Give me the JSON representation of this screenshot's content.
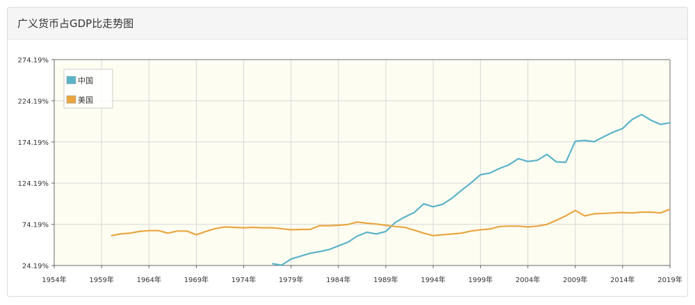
{
  "panel": {
    "title": "广义货币占GDP比走势图"
  },
  "chart_data": {
    "type": "line",
    "title": "广义货币占GDP比走势图",
    "xlabel": "",
    "ylabel": "",
    "x_ticks": [
      "1954年",
      "1959年",
      "1964年",
      "1969年",
      "1974年",
      "1979年",
      "1984年",
      "1989年",
      "1994年",
      "1999年",
      "2004年",
      "2009年",
      "2014年",
      "2019年"
    ],
    "y_ticks": [
      "24.19%",
      "74.19%",
      "124.19%",
      "174.19%",
      "224.19%",
      "274.19%"
    ],
    "xlim": [
      1954,
      2019
    ],
    "ylim": [
      24.19,
      274.19
    ],
    "grid": true,
    "legend_position": "top-left",
    "series": [
      {
        "name": "中国",
        "color": "#5bb3c9",
        "points": [
          [
            1977,
            26.5
          ],
          [
            1978,
            24.6
          ],
          [
            1979,
            32.0
          ],
          [
            1980,
            35.5
          ],
          [
            1981,
            39.0
          ],
          [
            1982,
            41.0
          ],
          [
            1983,
            43.5
          ],
          [
            1984,
            48.0
          ],
          [
            1985,
            52.5
          ],
          [
            1986,
            60.0
          ],
          [
            1987,
            64.5
          ],
          [
            1988,
            62.5
          ],
          [
            1989,
            65.5
          ],
          [
            1990,
            76.5
          ],
          [
            1991,
            83.0
          ],
          [
            1992,
            88.5
          ],
          [
            1993,
            99.0
          ],
          [
            1994,
            95.5
          ],
          [
            1995,
            98.5
          ],
          [
            1996,
            106.0
          ],
          [
            1997,
            115.5
          ],
          [
            1998,
            124.5
          ],
          [
            1999,
            134.5
          ],
          [
            2000,
            136.5
          ],
          [
            2001,
            142.0
          ],
          [
            2002,
            146.5
          ],
          [
            2003,
            154.0
          ],
          [
            2004,
            150.5
          ],
          [
            2005,
            152.0
          ],
          [
            2006,
            159.0
          ],
          [
            2007,
            150.0
          ],
          [
            2008,
            149.5
          ],
          [
            2009,
            175.0
          ],
          [
            2010,
            176.0
          ],
          [
            2011,
            174.5
          ],
          [
            2012,
            180.5
          ],
          [
            2013,
            186.0
          ],
          [
            2014,
            190.5
          ],
          [
            2015,
            201.5
          ],
          [
            2016,
            207.5
          ],
          [
            2017,
            200.5
          ],
          [
            2018,
            195.5
          ],
          [
            2019,
            197.5
          ]
        ]
      },
      {
        "name": "美国",
        "color": "#e9a640",
        "points": [
          [
            1960,
            60.5
          ],
          [
            1961,
            62.5
          ],
          [
            1962,
            63.5
          ],
          [
            1963,
            65.5
          ],
          [
            1964,
            66.5
          ],
          [
            1965,
            66.5
          ],
          [
            1966,
            63.5
          ],
          [
            1967,
            66.0
          ],
          [
            1968,
            66.0
          ],
          [
            1969,
            61.5
          ],
          [
            1970,
            65.5
          ],
          [
            1971,
            69.0
          ],
          [
            1972,
            71.0
          ],
          [
            1973,
            70.5
          ],
          [
            1974,
            70.0
          ],
          [
            1975,
            70.5
          ],
          [
            1976,
            70.0
          ],
          [
            1977,
            70.0
          ],
          [
            1978,
            69.0
          ],
          [
            1979,
            67.5
          ],
          [
            1980,
            68.0
          ],
          [
            1981,
            68.0
          ],
          [
            1982,
            72.5
          ],
          [
            1983,
            72.5
          ],
          [
            1984,
            73.0
          ],
          [
            1985,
            74.0
          ],
          [
            1986,
            77.0
          ],
          [
            1987,
            75.5
          ],
          [
            1988,
            74.5
          ],
          [
            1989,
            73.0
          ],
          [
            1990,
            71.5
          ],
          [
            1991,
            70.5
          ],
          [
            1992,
            67.0
          ],
          [
            1993,
            63.5
          ],
          [
            1994,
            60.5
          ],
          [
            1995,
            61.5
          ],
          [
            1996,
            62.5
          ],
          [
            1997,
            63.5
          ],
          [
            1998,
            66.0
          ],
          [
            1999,
            67.5
          ],
          [
            2000,
            68.5
          ],
          [
            2001,
            71.5
          ],
          [
            2002,
            72.0
          ],
          [
            2003,
            72.0
          ],
          [
            2004,
            71.0
          ],
          [
            2005,
            72.0
          ],
          [
            2006,
            74.0
          ],
          [
            2007,
            79.0
          ],
          [
            2008,
            84.5
          ],
          [
            2009,
            91.0
          ],
          [
            2010,
            84.5
          ],
          [
            2011,
            87.0
          ],
          [
            2012,
            87.5
          ],
          [
            2013,
            88.0
          ],
          [
            2014,
            88.5
          ],
          [
            2015,
            88.0
          ],
          [
            2016,
            89.0
          ],
          [
            2017,
            89.0
          ],
          [
            2018,
            88.0
          ],
          [
            2019,
            92.5
          ]
        ]
      }
    ]
  }
}
